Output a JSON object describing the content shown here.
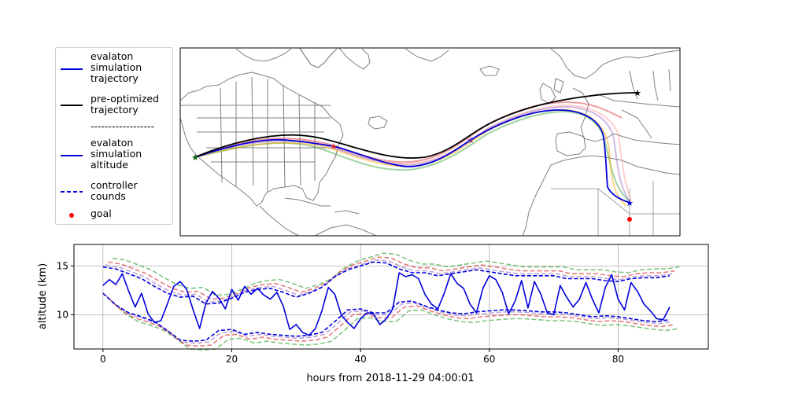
{
  "legend": {
    "items": [
      {
        "label": "evalaton\nsimulation\ntrajectory",
        "style": "solid",
        "color": "#0000dd"
      },
      {
        "label": "pre-optimized\ntrajectory",
        "style": "solid",
        "color": "#000000"
      },
      {
        "label": "------------------",
        "style": "separator"
      },
      {
        "label": "evalaton\nsimulation\naltitude",
        "style": "solid",
        "color": "#0000dd"
      },
      {
        "label": "controller\ncounds",
        "style": "dashed",
        "color": "#0000dd"
      },
      {
        "label": "goal",
        "style": "dot",
        "color": "#ff0000"
      }
    ]
  },
  "colors": {
    "simulation": "#0000dd",
    "preoptimized": "#000000",
    "goal": "#ff0000",
    "map_border": "#808080",
    "ensemble": [
      "#d62728",
      "#2ca02c",
      "#ff9896",
      "#ffa500",
      "#9467bd"
    ]
  },
  "chart_data": [
    {
      "type": "map",
      "description_markers": [
        "start",
        "waypoints",
        "end",
        "goal"
      ],
      "series": [
        {
          "name": "evalaton simulation trajectory",
          "color": "#0000dd"
        },
        {
          "name": "pre-optimized trajectory",
          "color": "#000000"
        }
      ],
      "goal_marker": {
        "label": "goal",
        "color": "#ff0000"
      }
    },
    {
      "type": "line",
      "xlabel": "hours from 2018-11-29 04:00:01",
      "ylabel": "altitude (km)",
      "xlim": [
        -4.5,
        94
      ],
      "ylim": [
        6.5,
        17.2
      ],
      "xticks": [
        0,
        20,
        40,
        60,
        80
      ],
      "yticks": [
        10,
        15
      ],
      "grid": true,
      "altitude": {
        "x": [
          0,
          1,
          2,
          3,
          4,
          5,
          6,
          7,
          8,
          9,
          10,
          11,
          12,
          13,
          14,
          15,
          16,
          17,
          18,
          19,
          20,
          21,
          22,
          23,
          24,
          25,
          26,
          27,
          28,
          29,
          30,
          31,
          32,
          33,
          34,
          35,
          36,
          37,
          38,
          39,
          40,
          41,
          42,
          43,
          44,
          45,
          46,
          47,
          48,
          49,
          50,
          51,
          52,
          53,
          54,
          55,
          56,
          57,
          58,
          59,
          60,
          61,
          62,
          63,
          64,
          65,
          66,
          67,
          68,
          69,
          70,
          71,
          72,
          73,
          74,
          75,
          76,
          77,
          78,
          79,
          80,
          81,
          82,
          83,
          84,
          85,
          86,
          87,
          88
        ],
        "y": [
          13.0,
          13.6,
          13.1,
          14.2,
          12.4,
          10.8,
          12.2,
          10.1,
          9.2,
          9.4,
          11.1,
          12.9,
          13.4,
          12.6,
          10.5,
          8.6,
          11.2,
          12.4,
          11.7,
          10.6,
          12.6,
          11.5,
          12.9,
          12.1,
          12.7,
          12.0,
          11.6,
          12.3,
          10.9,
          8.5,
          9.0,
          8.2,
          7.9,
          8.6,
          10.4,
          12.8,
          12.1,
          10.0,
          9.2,
          8.6,
          9.6,
          10.2,
          10.1,
          9.0,
          9.6,
          10.6,
          14.3,
          13.9,
          14.1,
          13.7,
          12.1,
          11.1,
          10.6,
          12.2,
          14.2,
          13.2,
          12.7,
          11.1,
          10.2,
          12.7,
          14.0,
          13.6,
          12.3,
          10.1,
          11.4,
          13.5,
          10.7,
          13.4,
          12.1,
          10.2,
          10.0,
          13.0,
          11.8,
          10.8,
          11.6,
          13.3,
          11.6,
          10.2,
          12.8,
          14.1,
          11.6,
          10.5,
          13.3,
          12.4,
          11.1,
          10.4,
          9.6,
          9.5,
          10.8
        ]
      },
      "bounds_upper": {
        "x": [
          0,
          2,
          4,
          6,
          8,
          10,
          12,
          14,
          16,
          18,
          20,
          22,
          24,
          26,
          28,
          30,
          32,
          34,
          36,
          38,
          40,
          42,
          44,
          46,
          48,
          50,
          52,
          54,
          56,
          58,
          60,
          62,
          64,
          66,
          68,
          70,
          72,
          74,
          76,
          78,
          80,
          82,
          84,
          86,
          88
        ],
        "y": [
          14.9,
          14.7,
          14.2,
          13.7,
          12.9,
          12.2,
          11.8,
          11.9,
          11.1,
          11.2,
          11.7,
          12.3,
          12.6,
          12.7,
          12.3,
          11.8,
          12.2,
          12.8,
          13.9,
          14.6,
          15.0,
          15.4,
          15.3,
          14.7,
          14.3,
          14.3,
          14.0,
          14.2,
          14.4,
          14.6,
          14.4,
          14.2,
          14.0,
          14.0,
          14.0,
          14.0,
          13.7,
          13.7,
          13.7,
          13.5,
          13.4,
          13.7,
          13.8,
          13.8,
          14.0
        ]
      },
      "bounds_lower": {
        "x": [
          0,
          2,
          4,
          6,
          8,
          10,
          12,
          14,
          16,
          18,
          20,
          22,
          24,
          26,
          28,
          30,
          32,
          34,
          36,
          38,
          40,
          42,
          44,
          46,
          48,
          50,
          52,
          54,
          56,
          58,
          60,
          62,
          64,
          66,
          68,
          70,
          72,
          74,
          76,
          78,
          80,
          82,
          84,
          86,
          88
        ],
        "y": [
          12.2,
          11.0,
          10.2,
          9.8,
          9.3,
          8.4,
          7.4,
          7.3,
          7.4,
          8.4,
          8.5,
          8.0,
          8.2,
          8.0,
          7.9,
          7.8,
          7.9,
          8.2,
          9.3,
          10.5,
          10.6,
          10.2,
          10.2,
          11.3,
          11.4,
          10.9,
          10.5,
          10.2,
          10.1,
          10.3,
          10.4,
          10.5,
          10.5,
          10.4,
          10.3,
          10.3,
          10.2,
          10.0,
          9.8,
          9.9,
          9.8,
          9.6,
          9.4,
          9.3,
          9.5
        ]
      }
    }
  ]
}
